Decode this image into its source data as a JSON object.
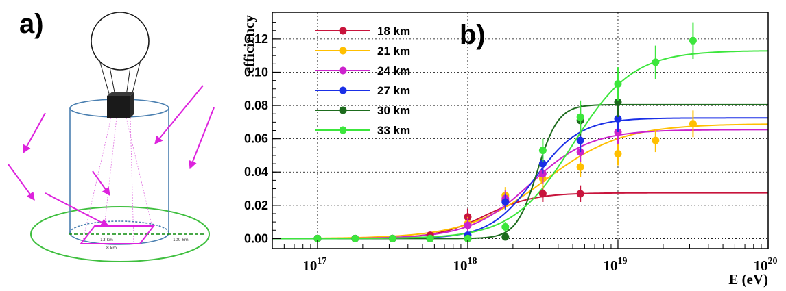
{
  "panel_a": {
    "label": "a)",
    "labels": {
      "inner_long": "13 km",
      "inner_short": "8 km",
      "outer": "100 km"
    },
    "colors": {
      "cylinder": "#4a7fb0",
      "outer_ellipse": "#3fbf3f",
      "arrows": "#dd22dd",
      "camera": "#1a1a1a"
    },
    "icons": [
      "balloon-icon",
      "camera-icon",
      "arrow-icon"
    ]
  },
  "chart_data": {
    "type": "scatter",
    "panel_label": "b)",
    "xlabel": "E (eV)",
    "ylabel": "efficiency",
    "x_scale": "log",
    "xlim": [
      5e+16,
      1e+20
    ],
    "ylim": [
      -0.006,
      0.136
    ],
    "grid": true,
    "legend_position": "top-left",
    "x_ticks": [
      {
        "base": "10",
        "exp": "17",
        "value": 1e+17
      },
      {
        "base": "10",
        "exp": "18",
        "value": 1e+18
      },
      {
        "base": "10",
        "exp": "19",
        "value": 1e+19
      },
      {
        "base": "10",
        "exp": "20",
        "value": 1e+20
      }
    ],
    "y_ticks": [
      {
        "label": "0.00",
        "value": 0.0
      },
      {
        "label": "0.02",
        "value": 0.02
      },
      {
        "label": "0.04",
        "value": 0.04
      },
      {
        "label": "0.06",
        "value": 0.06
      },
      {
        "label": "0.08",
        "value": 0.08
      },
      {
        "label": "0.10",
        "value": 0.1
      },
      {
        "label": "0.12",
        "value": 0.12
      }
    ],
    "series": [
      {
        "name": "18 km",
        "color": "#c8143c",
        "fit": {
          "plateau": 0.0275,
          "midpoint": 1.3e+18,
          "width_log10": 0.16
        },
        "points": [
          {
            "x": 1e+17,
            "y": 0.0,
            "err": 0.0
          },
          {
            "x": 1.78e+17,
            "y": 0.0,
            "err": 0.0
          },
          {
            "x": 3.16e+17,
            "y": 0.0,
            "err": 0.0
          },
          {
            "x": 5.62e+17,
            "y": 0.002,
            "err": 0.001
          },
          {
            "x": 1e+18,
            "y": 0.013,
            "err": 0.005
          },
          {
            "x": 1.78e+18,
            "y": 0.023,
            "err": 0.005
          },
          {
            "x": 3.16e+18,
            "y": 0.027,
            "err": 0.005
          },
          {
            "x": 5.62e+18,
            "y": 0.027,
            "err": 0.005
          }
        ]
      },
      {
        "name": "21 km",
        "color": "#ffbf00",
        "fit": {
          "plateau": 0.069,
          "midpoint": 3.2e+18,
          "width_log10": 0.26
        },
        "points": [
          {
            "x": 1e+17,
            "y": 0.0,
            "err": 0.0
          },
          {
            "x": 1.78e+17,
            "y": 0.0,
            "err": 0.0
          },
          {
            "x": 3.16e+17,
            "y": 0.0,
            "err": 0.0
          },
          {
            "x": 5.62e+17,
            "y": 0.0,
            "err": 0.0
          },
          {
            "x": 1e+18,
            "y": 0.009,
            "err": 0.004
          },
          {
            "x": 1.78e+18,
            "y": 0.026,
            "err": 0.005
          },
          {
            "x": 3.16e+18,
            "y": 0.036,
            "err": 0.006
          },
          {
            "x": 5.62e+18,
            "y": 0.043,
            "err": 0.006
          },
          {
            "x": 1e+19,
            "y": 0.051,
            "err": 0.007
          },
          {
            "x": 1.78e+19,
            "y": 0.059,
            "err": 0.007
          },
          {
            "x": 3.16e+19,
            "y": 0.069,
            "err": 0.008
          }
        ]
      },
      {
        "name": "24 km",
        "color": "#cc22cc",
        "fit": {
          "plateau": 0.0655,
          "midpoint": 2.6e+18,
          "width_log10": 0.2
        },
        "points": [
          {
            "x": 1e+17,
            "y": 0.0,
            "err": 0.0
          },
          {
            "x": 1.78e+17,
            "y": 0.0,
            "err": 0.0
          },
          {
            "x": 3.16e+17,
            "y": 0.0,
            "err": 0.0
          },
          {
            "x": 5.62e+17,
            "y": 0.0,
            "err": 0.0
          },
          {
            "x": 1e+18,
            "y": 0.008,
            "err": 0.004
          },
          {
            "x": 1.78e+18,
            "y": 0.024,
            "err": 0.005
          },
          {
            "x": 3.16e+18,
            "y": 0.039,
            "err": 0.006
          },
          {
            "x": 5.62e+18,
            "y": 0.052,
            "err": 0.006
          },
          {
            "x": 1e+19,
            "y": 0.064,
            "err": 0.007
          }
        ]
      },
      {
        "name": "27 km",
        "color": "#1a2fe6",
        "fit": {
          "plateau": 0.0725,
          "midpoint": 2.8e+18,
          "width_log10": 0.15
        },
        "points": [
          {
            "x": 1e+17,
            "y": 0.0,
            "err": 0.0
          },
          {
            "x": 1.78e+17,
            "y": 0.0,
            "err": 0.0
          },
          {
            "x": 3.16e+17,
            "y": 0.0,
            "err": 0.0
          },
          {
            "x": 5.62e+17,
            "y": 0.0,
            "err": 0.0
          },
          {
            "x": 1e+18,
            "y": 0.002,
            "err": 0.002
          },
          {
            "x": 1.78e+18,
            "y": 0.022,
            "err": 0.005
          },
          {
            "x": 3.16e+18,
            "y": 0.045,
            "err": 0.006
          },
          {
            "x": 5.62e+18,
            "y": 0.059,
            "err": 0.007
          },
          {
            "x": 1e+19,
            "y": 0.072,
            "err": 0.008
          }
        ]
      },
      {
        "name": "30 km",
        "color": "#1d6b1d",
        "fit": {
          "plateau": 0.0805,
          "midpoint": 2.9e+18,
          "width_log10": 0.07
        },
        "points": [
          {
            "x": 1e+17,
            "y": 0.0,
            "err": 0.0
          },
          {
            "x": 1.78e+17,
            "y": 0.0,
            "err": 0.0
          },
          {
            "x": 3.16e+17,
            "y": 0.0,
            "err": 0.0
          },
          {
            "x": 5.62e+17,
            "y": 0.0,
            "err": 0.0
          },
          {
            "x": 1e+18,
            "y": 0.0,
            "err": 0.0
          },
          {
            "x": 1.78e+18,
            "y": 0.001,
            "err": 0.001
          },
          {
            "x": 5.62e+18,
            "y": 0.071,
            "err": 0.009
          },
          {
            "x": 1e+19,
            "y": 0.082,
            "err": 0.009
          }
        ]
      },
      {
        "name": "33 km",
        "color": "#3ce63c",
        "fit": {
          "plateau": 0.113,
          "midpoint": 5e+18,
          "width_log10": 0.2
        },
        "points": [
          {
            "x": 1e+17,
            "y": 0.0,
            "err": 0.0
          },
          {
            "x": 1.78e+17,
            "y": 0.0,
            "err": 0.0
          },
          {
            "x": 3.16e+17,
            "y": 0.0,
            "err": 0.0
          },
          {
            "x": 5.62e+17,
            "y": 0.0,
            "err": 0.0
          },
          {
            "x": 1e+18,
            "y": 0.0,
            "err": 0.0
          },
          {
            "x": 1.78e+18,
            "y": 0.007,
            "err": 0.003
          },
          {
            "x": 3.16e+18,
            "y": 0.053,
            "err": 0.007
          },
          {
            "x": 5.62e+18,
            "y": 0.073,
            "err": 0.01
          },
          {
            "x": 1e+19,
            "y": 0.093,
            "err": 0.01
          },
          {
            "x": 1.78e+19,
            "y": 0.106,
            "err": 0.01
          },
          {
            "x": 3.16e+19,
            "y": 0.119,
            "err": 0.011
          }
        ]
      }
    ]
  }
}
